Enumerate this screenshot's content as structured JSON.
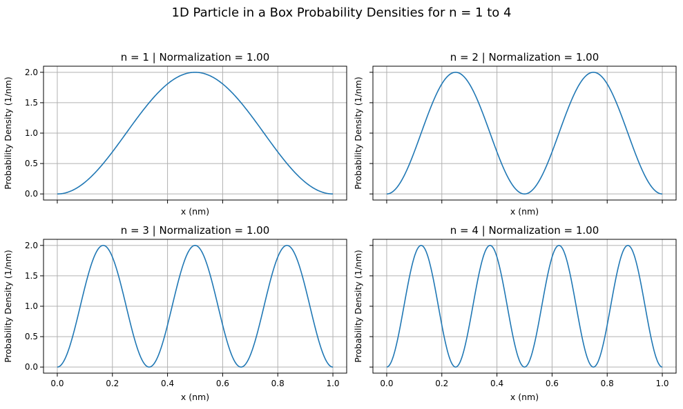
{
  "figure": {
    "title": "1D Particle in a Box Probability Densities for n = 1 to 4",
    "line_color": "#1f77b4",
    "grid_color": "#b0b0b0",
    "grid": true,
    "sharex": true,
    "sharey": true
  },
  "chart_data": [
    {
      "type": "line",
      "title": "n = 1 | Normalization = 1.00",
      "xlabel": "x (nm)",
      "ylabel": "Probability Density (1/nm)",
      "n": 1,
      "L": 1.0,
      "function": "(2/L) * sin^2(n*pi*x/L)",
      "xlim": [
        -0.05,
        1.05
      ],
      "ylim": [
        -0.1,
        2.1
      ],
      "xticks": [
        0.0,
        0.2,
        0.4,
        0.6,
        0.8,
        1.0
      ],
      "yticks": [
        0.0,
        0.5,
        1.0,
        1.5,
        2.0
      ],
      "xticklabels": [
        "0.0",
        "0.2",
        "0.4",
        "0.6",
        "0.8",
        "1.0"
      ],
      "yticklabels": [
        "0.0",
        "0.5",
        "1.0",
        "1.5",
        "2.0"
      ],
      "show_xticklabels": false,
      "show_yticklabels": true,
      "series": [
        {
          "x": [
            0.0,
            0.0625,
            0.125,
            0.1875,
            0.25,
            0.3125,
            0.375,
            0.4375,
            0.5,
            0.5625,
            0.625,
            0.6875,
            0.75,
            0.8125,
            0.875,
            0.9375,
            1.0
          ],
          "y": [
            0.0,
            0.076,
            0.293,
            0.617,
            1.0,
            1.383,
            1.707,
            1.924,
            2.0,
            1.924,
            1.707,
            1.383,
            1.0,
            0.617,
            0.293,
            0.076,
            0.0
          ]
        }
      ]
    },
    {
      "type": "line",
      "title": "n = 2 | Normalization = 1.00",
      "xlabel": "x (nm)",
      "ylabel": "Probability Density (1/nm)",
      "n": 2,
      "L": 1.0,
      "function": "(2/L) * sin^2(n*pi*x/L)",
      "xlim": [
        -0.05,
        1.05
      ],
      "ylim": [
        -0.1,
        2.1
      ],
      "xticks": [
        0.0,
        0.2,
        0.4,
        0.6,
        0.8,
        1.0
      ],
      "yticks": [
        0.0,
        0.5,
        1.0,
        1.5,
        2.0
      ],
      "xticklabels": [
        "0.0",
        "0.2",
        "0.4",
        "0.6",
        "0.8",
        "1.0"
      ],
      "yticklabels": [
        "0.0",
        "0.5",
        "1.0",
        "1.5",
        "2.0"
      ],
      "show_xticklabels": false,
      "show_yticklabels": false,
      "series": [
        {
          "x": [
            0.0,
            0.0625,
            0.125,
            0.1875,
            0.25,
            0.3125,
            0.375,
            0.4375,
            0.5,
            0.5625,
            0.625,
            0.6875,
            0.75,
            0.8125,
            0.875,
            0.9375,
            1.0
          ],
          "y": [
            0.0,
            0.293,
            1.0,
            1.707,
            2.0,
            1.707,
            1.0,
            0.293,
            0.0,
            0.293,
            1.0,
            1.707,
            2.0,
            1.707,
            1.0,
            0.293,
            0.0
          ]
        }
      ]
    },
    {
      "type": "line",
      "title": "n = 3 | Normalization = 1.00",
      "xlabel": "x (nm)",
      "ylabel": "Probability Density (1/nm)",
      "n": 3,
      "L": 1.0,
      "function": "(2/L) * sin^2(n*pi*x/L)",
      "xlim": [
        -0.05,
        1.05
      ],
      "ylim": [
        -0.1,
        2.1
      ],
      "xticks": [
        0.0,
        0.2,
        0.4,
        0.6,
        0.8,
        1.0
      ],
      "yticks": [
        0.0,
        0.5,
        1.0,
        1.5,
        2.0
      ],
      "xticklabels": [
        "0.0",
        "0.2",
        "0.4",
        "0.6",
        "0.8",
        "1.0"
      ],
      "yticklabels": [
        "0.0",
        "0.5",
        "1.0",
        "1.5",
        "2.0"
      ],
      "show_xticklabels": true,
      "show_yticklabels": true,
      "series": [
        {
          "x": [
            0.0,
            0.0833,
            0.1667,
            0.25,
            0.3333,
            0.4167,
            0.5,
            0.5833,
            0.6667,
            0.75,
            0.8333,
            0.9167,
            1.0
          ],
          "y": [
            0.0,
            1.0,
            2.0,
            1.0,
            0.0,
            1.0,
            2.0,
            1.0,
            0.0,
            1.0,
            2.0,
            1.0,
            0.0
          ]
        }
      ]
    },
    {
      "type": "line",
      "title": "n = 4 | Normalization = 1.00",
      "xlabel": "x (nm)",
      "ylabel": "Probability Density (1/nm)",
      "n": 4,
      "L": 1.0,
      "function": "(2/L) * sin^2(n*pi*x/L)",
      "xlim": [
        -0.05,
        1.05
      ],
      "ylim": [
        -0.1,
        2.1
      ],
      "xticks": [
        0.0,
        0.2,
        0.4,
        0.6,
        0.8,
        1.0
      ],
      "yticks": [
        0.0,
        0.5,
        1.0,
        1.5,
        2.0
      ],
      "xticklabels": [
        "0.0",
        "0.2",
        "0.4",
        "0.6",
        "0.8",
        "1.0"
      ],
      "yticklabels": [
        "0.0",
        "0.5",
        "1.0",
        "1.5",
        "2.0"
      ],
      "show_xticklabels": true,
      "show_yticklabels": false,
      "series": [
        {
          "x": [
            0.0,
            0.0625,
            0.125,
            0.1875,
            0.25,
            0.3125,
            0.375,
            0.4375,
            0.5,
            0.5625,
            0.625,
            0.6875,
            0.75,
            0.8125,
            0.875,
            0.9375,
            1.0
          ],
          "y": [
            0.0,
            1.0,
            2.0,
            1.0,
            0.0,
            1.0,
            2.0,
            1.0,
            0.0,
            1.0,
            2.0,
            1.0,
            0.0,
            1.0,
            2.0,
            1.0,
            0.0
          ]
        }
      ]
    }
  ]
}
